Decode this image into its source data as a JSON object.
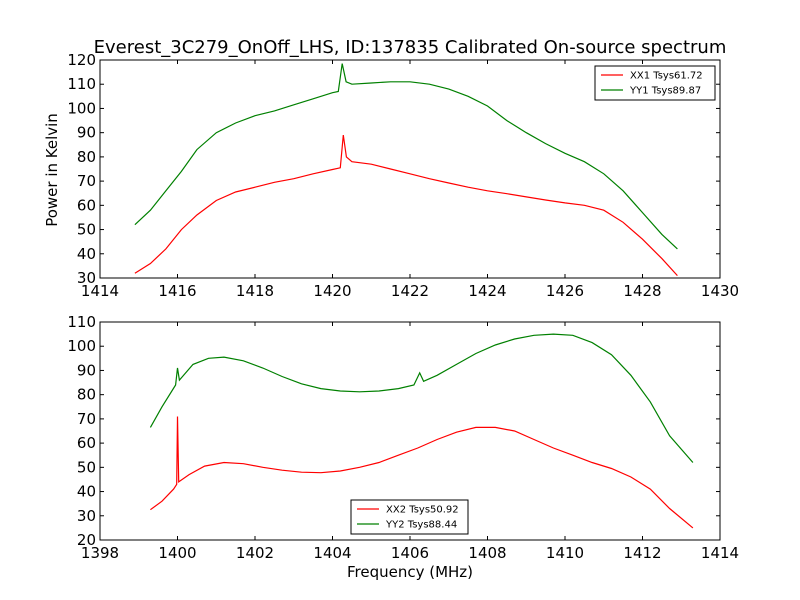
{
  "title": "Everest_3C279_OnOff_LHS, ID:137835 Calibrated On-source spectrum",
  "xlabel": "Frequency (MHz)",
  "ylabel": "Power in Kelvin",
  "colors": {
    "xx": "#ff0000",
    "yy": "#008000"
  },
  "chart_data": [
    {
      "type": "line",
      "xlim": [
        1414,
        1430
      ],
      "ylim": [
        30,
        120
      ],
      "xticks": [
        1414,
        1416,
        1418,
        1420,
        1422,
        1424,
        1426,
        1428,
        1430
      ],
      "yticks": [
        30,
        40,
        50,
        60,
        70,
        80,
        90,
        100,
        110,
        120
      ],
      "legend_position": "top-right",
      "series": [
        {
          "name": "XX1 Tsys61.72",
          "color": "#ff0000",
          "points": [
            [
              1414.9,
              32
            ],
            [
              1415.3,
              36
            ],
            [
              1415.7,
              42
            ],
            [
              1416.1,
              50
            ],
            [
              1416.5,
              56
            ],
            [
              1417,
              62
            ],
            [
              1417.5,
              65.5
            ],
            [
              1418,
              67.5
            ],
            [
              1418.5,
              69.5
            ],
            [
              1419,
              71
            ],
            [
              1419.5,
              73
            ],
            [
              1420,
              74.8
            ],
            [
              1420.2,
              75.5
            ],
            [
              1420.28,
              89
            ],
            [
              1420.36,
              80
            ],
            [
              1420.5,
              78
            ],
            [
              1421,
              77
            ],
            [
              1421.5,
              75
            ],
            [
              1422,
              73
            ],
            [
              1422.5,
              71
            ],
            [
              1423,
              69.2
            ],
            [
              1423.5,
              67.5
            ],
            [
              1424,
              66
            ],
            [
              1424.5,
              64.8
            ],
            [
              1425,
              63.5
            ],
            [
              1425.5,
              62.2
            ],
            [
              1426,
              61
            ],
            [
              1426.5,
              60
            ],
            [
              1427,
              58
            ],
            [
              1427.5,
              53
            ],
            [
              1428,
              46
            ],
            [
              1428.5,
              38
            ],
            [
              1428.9,
              31
            ]
          ]
        },
        {
          "name": "YY1 Tsys89.87",
          "color": "#008000",
          "points": [
            [
              1414.9,
              52
            ],
            [
              1415.3,
              58
            ],
            [
              1415.7,
              66
            ],
            [
              1416.1,
              74
            ],
            [
              1416.5,
              83
            ],
            [
              1417,
              90
            ],
            [
              1417.5,
              94
            ],
            [
              1418,
              97
            ],
            [
              1418.5,
              99
            ],
            [
              1419,
              101.5
            ],
            [
              1419.5,
              104
            ],
            [
              1420,
              106.5
            ],
            [
              1420.15,
              107
            ],
            [
              1420.25,
              118.5
            ],
            [
              1420.35,
              111
            ],
            [
              1420.5,
              110
            ],
            [
              1421,
              110.5
            ],
            [
              1421.5,
              111
            ],
            [
              1422,
              111
            ],
            [
              1422.5,
              110
            ],
            [
              1423,
              108
            ],
            [
              1423.5,
              105
            ],
            [
              1424,
              101
            ],
            [
              1424.5,
              95
            ],
            [
              1425,
              90
            ],
            [
              1425.5,
              85.5
            ],
            [
              1426,
              81.5
            ],
            [
              1426.5,
              78
            ],
            [
              1427,
              73
            ],
            [
              1427.5,
              66
            ],
            [
              1428,
              57
            ],
            [
              1428.5,
              48
            ],
            [
              1428.9,
              42
            ]
          ]
        }
      ]
    },
    {
      "type": "line",
      "xlim": [
        1398,
        1414
      ],
      "ylim": [
        20,
        110
      ],
      "xticks": [
        1398,
        1400,
        1402,
        1404,
        1406,
        1408,
        1410,
        1412,
        1414
      ],
      "yticks": [
        20,
        30,
        40,
        50,
        60,
        70,
        80,
        90,
        100,
        110
      ],
      "legend_position": "bottom-center",
      "series": [
        {
          "name": "XX2 Tsys50.92",
          "color": "#ff0000",
          "points": [
            [
              1399.3,
              32.5
            ],
            [
              1399.6,
              36
            ],
            [
              1399.9,
              41
            ],
            [
              1399.98,
              43
            ],
            [
              1400.0,
              71
            ],
            [
              1400.03,
              44
            ],
            [
              1400.3,
              47
            ],
            [
              1400.7,
              50.5
            ],
            [
              1401.2,
              52
            ],
            [
              1401.7,
              51.5
            ],
            [
              1402.2,
              50
            ],
            [
              1402.7,
              48.8
            ],
            [
              1403.2,
              48
            ],
            [
              1403.7,
              47.8
            ],
            [
              1404.2,
              48.5
            ],
            [
              1404.7,
              50
            ],
            [
              1405.2,
              52
            ],
            [
              1405.7,
              55
            ],
            [
              1406.2,
              58
            ],
            [
              1406.7,
              61.5
            ],
            [
              1407.2,
              64.5
            ],
            [
              1407.7,
              66.5
            ],
            [
              1408.2,
              66.5
            ],
            [
              1408.7,
              65
            ],
            [
              1409.2,
              61.5
            ],
            [
              1409.7,
              58
            ],
            [
              1410.2,
              55
            ],
            [
              1410.7,
              52
            ],
            [
              1411.2,
              49.5
            ],
            [
              1411.7,
              46
            ],
            [
              1412.2,
              41
            ],
            [
              1412.7,
              33
            ],
            [
              1413.3,
              25
            ]
          ]
        },
        {
          "name": "YY2 Tsys88.44",
          "color": "#008000",
          "points": [
            [
              1399.3,
              66.5
            ],
            [
              1399.6,
              75
            ],
            [
              1399.95,
              84
            ],
            [
              1400.0,
              91
            ],
            [
              1400.05,
              86
            ],
            [
              1400.4,
              92.5
            ],
            [
              1400.8,
              95
            ],
            [
              1401.2,
              95.5
            ],
            [
              1401.7,
              94
            ],
            [
              1402.2,
              91
            ],
            [
              1402.7,
              87.5
            ],
            [
              1403.2,
              84.5
            ],
            [
              1403.7,
              82.5
            ],
            [
              1404.2,
              81.5
            ],
            [
              1404.7,
              81.2
            ],
            [
              1405.2,
              81.5
            ],
            [
              1405.7,
              82.5
            ],
            [
              1406.1,
              84
            ],
            [
              1406.25,
              89
            ],
            [
              1406.35,
              85.5
            ],
            [
              1406.7,
              88
            ],
            [
              1407.2,
              92.5
            ],
            [
              1407.7,
              97
            ],
            [
              1408.2,
              100.5
            ],
            [
              1408.7,
              103
            ],
            [
              1409.2,
              104.5
            ],
            [
              1409.7,
              105
            ],
            [
              1410.2,
              104.5
            ],
            [
              1410.7,
              101.5
            ],
            [
              1411.2,
              96.5
            ],
            [
              1411.7,
              88
            ],
            [
              1412.2,
              77
            ],
            [
              1412.7,
              63
            ],
            [
              1413.3,
              52
            ]
          ]
        }
      ]
    }
  ]
}
